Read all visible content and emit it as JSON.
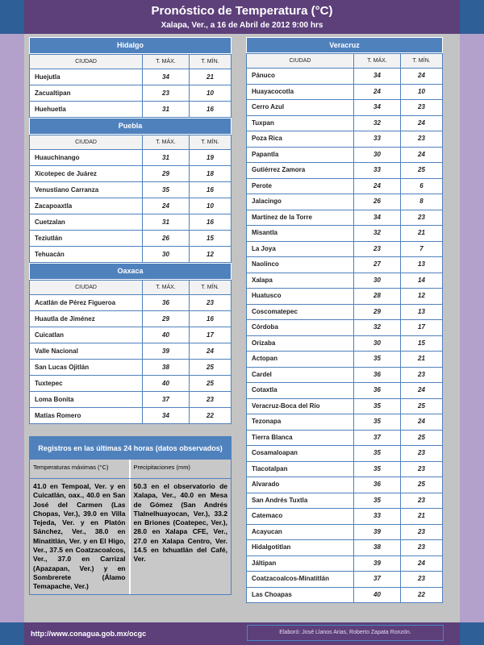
{
  "header": {
    "title": "Pronóstico de Temperatura (°C)",
    "subtitle": "Xalapa, Ver., a 16 de Abril de 2012  9:00 hrs"
  },
  "columns": {
    "city": "CIUDAD",
    "max": "T. MÁX.",
    "min": "T. MÍN."
  },
  "left": [
    {
      "name": "Hidalgo",
      "rows": [
        [
          "Huejutla",
          "34",
          "21"
        ],
        [
          "Zacualtipan",
          "23",
          "10"
        ],
        [
          "Huehuetla",
          "31",
          "16"
        ]
      ]
    },
    {
      "name": "Puebla",
      "rows": [
        [
          "Huauchinango",
          "31",
          "19"
        ],
        [
          "Xicotepec de Juárez",
          "29",
          "18"
        ],
        [
          "Venustiano Carranza",
          "35",
          "16"
        ],
        [
          "Zacapoaxtla",
          "24",
          "10"
        ],
        [
          "Cuetzalan",
          "31",
          "16"
        ],
        [
          "Teziutlán",
          "26",
          "15"
        ],
        [
          "Tehuacán",
          "30",
          "12"
        ]
      ]
    },
    {
      "name": "Oaxaca",
      "rows": [
        [
          "Acatlán de Pérez Figueroa",
          "36",
          "23"
        ],
        [
          "Huautla de Jiménez",
          "29",
          "16"
        ],
        [
          "Cuicatlan",
          "40",
          "17"
        ],
        [
          "Valle Nacional",
          "39",
          "24"
        ],
        [
          "San Lucas Ojitlán",
          "38",
          "25"
        ],
        [
          "Tuxtepec",
          "40",
          "25"
        ],
        [
          "Loma Bonita",
          "37",
          "23"
        ],
        [
          "Matías Romero",
          "34",
          "22"
        ]
      ]
    }
  ],
  "right": {
    "name": "Veracruz",
    "rows": [
      [
        "Pánuco",
        "34",
        "24"
      ],
      [
        "Huayacocotla",
        "24",
        "10"
      ],
      [
        "Cerro Azul",
        "34",
        "23"
      ],
      [
        "Tuxpan",
        "32",
        "24"
      ],
      [
        "Poza Rica",
        "33",
        "23"
      ],
      [
        "Papantla",
        "30",
        "24"
      ],
      [
        "Gutiérrez Zamora",
        "33",
        "25"
      ],
      [
        "Perote",
        "24",
        "6"
      ],
      [
        "Jalacingo",
        "26",
        "8"
      ],
      [
        "Martínez de la Torre",
        "34",
        "23"
      ],
      [
        "Misantla",
        "32",
        "21"
      ],
      [
        "La Joya",
        "23",
        "7"
      ],
      [
        "Naolinco",
        "27",
        "13"
      ],
      [
        "Xalapa",
        "30",
        "14"
      ],
      [
        "Huatusco",
        "28",
        "12"
      ],
      [
        "Coscomatepec",
        "29",
        "13"
      ],
      [
        "Córdoba",
        "32",
        "17"
      ],
      [
        "Orizaba",
        "30",
        "15"
      ],
      [
        "Actopan",
        "35",
        "21"
      ],
      [
        "Cardel",
        "36",
        "23"
      ],
      [
        "Cotaxtla",
        "36",
        "24"
      ],
      [
        "Veracruz-Boca del Río",
        "35",
        "25"
      ],
      [
        "Tezonapa",
        "35",
        "24"
      ],
      [
        "Tierra Blanca",
        "37",
        "25"
      ],
      [
        "Cosamaloapan",
        "35",
        "23"
      ],
      [
        "Tlacotalpan",
        "35",
        "23"
      ],
      [
        "Alvarado",
        "36",
        "25"
      ],
      [
        "San Andrés Tuxtla",
        "35",
        "23"
      ],
      [
        "Catemaco",
        "33",
        "21"
      ],
      [
        "Acayucan",
        "39",
        "23"
      ],
      [
        "Hidalgotitlan",
        "38",
        "23"
      ],
      [
        "Jáltipan",
        "39",
        "24"
      ],
      [
        "Coatzacoalcos-Minatitlán",
        "37",
        "23"
      ],
      [
        "Las Choapas",
        "40",
        "22"
      ]
    ]
  },
  "registros": {
    "title": "Registros en las últimas 24 horas (datos observados)",
    "temp_label": "Temperaturas máximas (°C)",
    "precip_label": "Precipitaciones (mm)",
    "temp_text": "41.0 en Tempoal, Ver. y en Cuicatlán, oax., 40.0 en San José del Carmen (Las Chopas, Ver.), 39.0 en Villa Tejeda, Ver. y en Platón Sánchez, Ver., 38.0 en Minatitlán, Ver. y en El Higo, Ver., 37.5 en Coatzacoalcos, Ver., 37.0 en Carrizal (Apazapan, Ver.) y en Sombrerete (Álamo Temapache, Ver.)",
    "precip_text": "50.3 en el observatorio de Xalapa, Ver., 40.0 en Mesa de Gómez (San Andrés Tlalnelhuayocan, Ver.), 33.2 en Briones (Coatepec, Ver.), 28.0 en Xalapa CFE, Ver., 27.0 en Xalapa Centro, Ver. 14.5 en Ixhuatlán del Café, Ver."
  },
  "footer": {
    "url": "http://www.conagua.gob.mx/ocgc",
    "credit": "Elaboró: José Llanos Arias, Roberto Zapata Ronzón."
  }
}
